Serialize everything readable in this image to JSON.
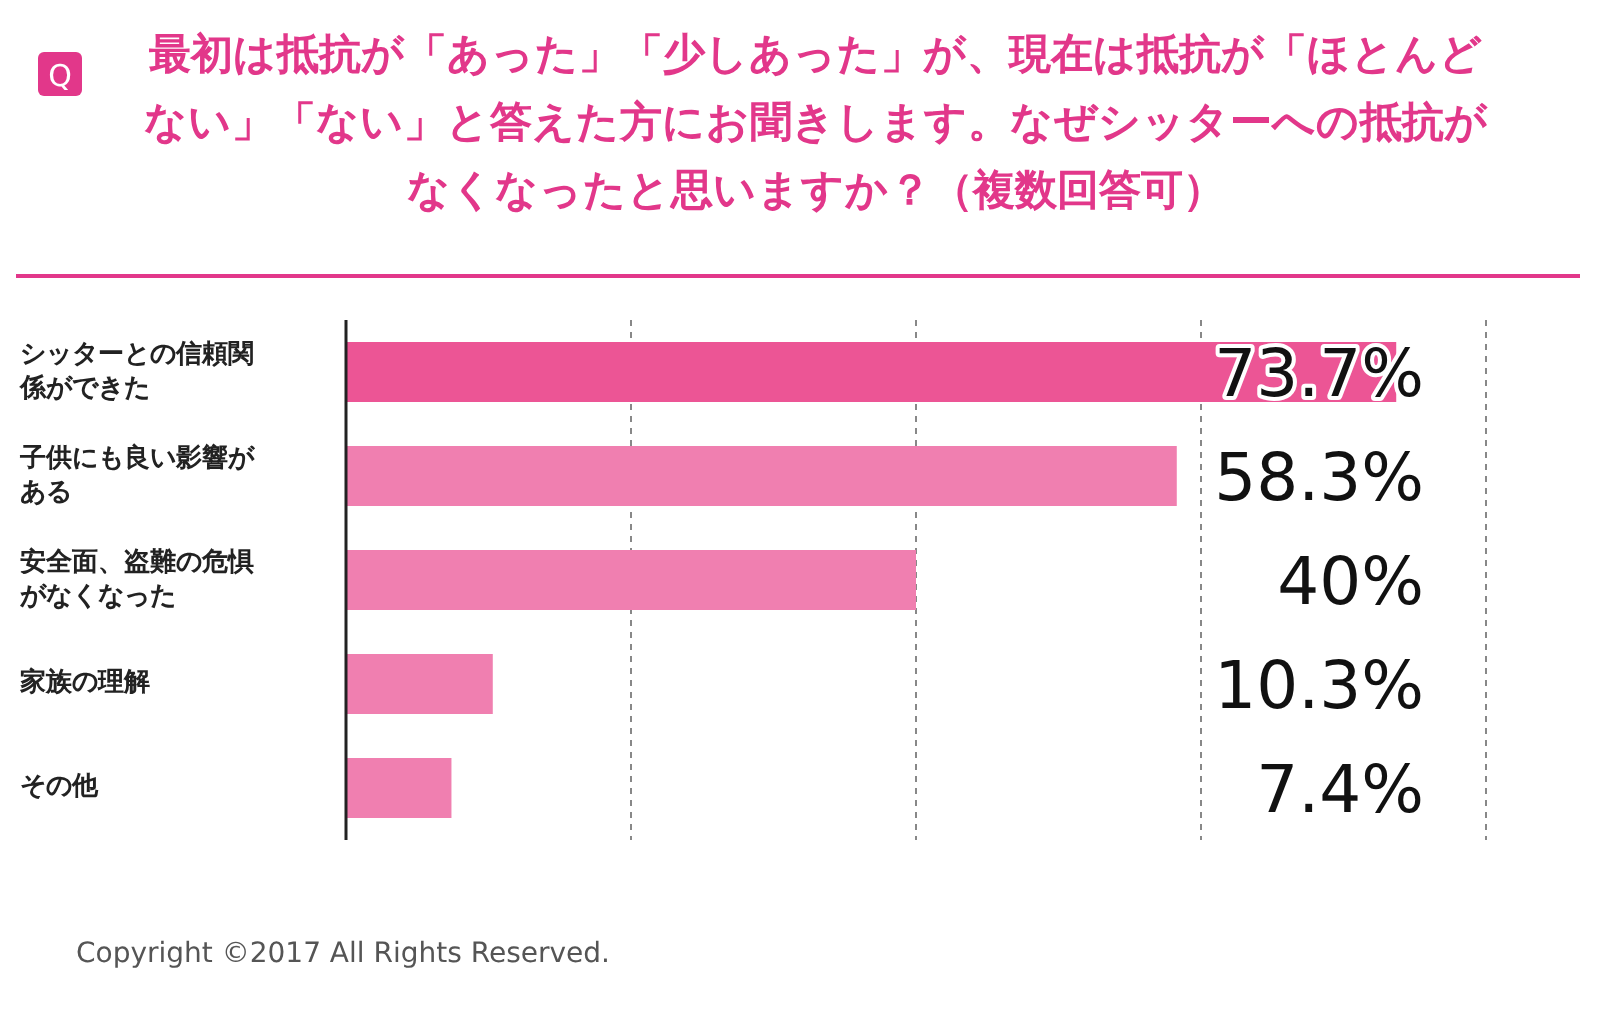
{
  "chart_data": {
    "type": "bar",
    "orientation": "horizontal",
    "title": "最初は抵抗が「あった」「少しあった」が、現在は抵抗が「ほとんどない」「ない」と答えた方にお聞きします。なぜシッターへの抵抗がなくなったと思いますか？（複数回答可）",
    "categories": [
      "シッターとの信頼関係ができた",
      "子供にも良い影響がある",
      "安全面、盗難の危惧がなくなった",
      "家族の理解",
      "その他"
    ],
    "values": [
      73.7,
      58.3,
      40,
      10.3,
      7.4
    ],
    "value_labels": [
      "73.7%",
      "58.3%",
      "40%",
      "10.3%",
      "7.4%"
    ],
    "colors": [
      "#ec5595",
      "#f07fb0",
      "#f07fb0",
      "#f07fb0",
      "#f07fb0"
    ],
    "xlim": [
      0,
      80
    ],
    "xticks": [
      {
        "value": 20,
        "label": null
      },
      {
        "value": 40,
        "label": null
      },
      {
        "value": 60,
        "label": null
      },
      {
        "value": 80,
        "label": null
      }
    ],
    "grid": "x",
    "tick_labels": "y",
    "annotations": [
      "Q",
      "Copyright ©2017 All Rights Reserved."
    ]
  }
}
